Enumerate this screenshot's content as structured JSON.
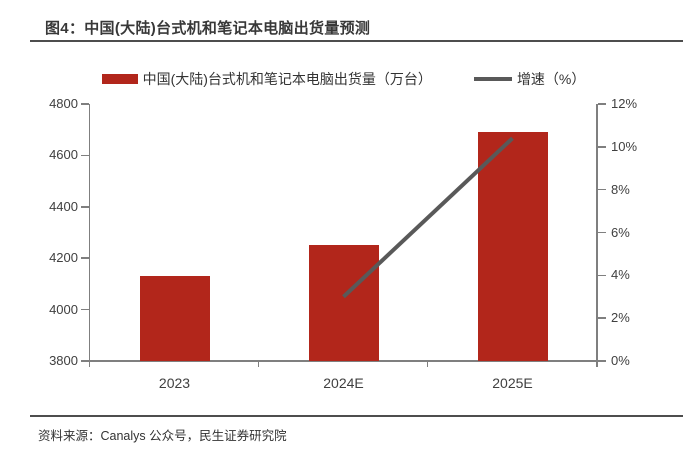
{
  "header": {
    "title": "图4：中国(大陆)台式机和笔记本电脑出货量预测"
  },
  "footer": {
    "source": "资料来源：Canalys 公众号，民生证券研究院"
  },
  "chart_data": {
    "type": "bar+line",
    "title": "中国(大陆)台式机和笔记本电脑出货量预测",
    "categories": [
      "2023",
      "2024E",
      "2025E"
    ],
    "series": [
      {
        "name": "中国(大陆)台式机和笔记本电脑出货量（万台）",
        "type": "bar",
        "axis": "left",
        "color": "#B2261B",
        "values": [
          4130,
          4250,
          4690
        ]
      },
      {
        "name": "增速（%）",
        "type": "line",
        "axis": "right",
        "color": "#595959",
        "values": [
          null,
          3.0,
          10.4
        ]
      }
    ],
    "y_left": {
      "min": 3800,
      "max": 4800,
      "step": 200
    },
    "y_right": {
      "min": 0,
      "max": 12,
      "step": 2,
      "suffix": "%"
    },
    "legend_position": "top",
    "grid": false,
    "xlabel": "",
    "ylabel": ""
  }
}
